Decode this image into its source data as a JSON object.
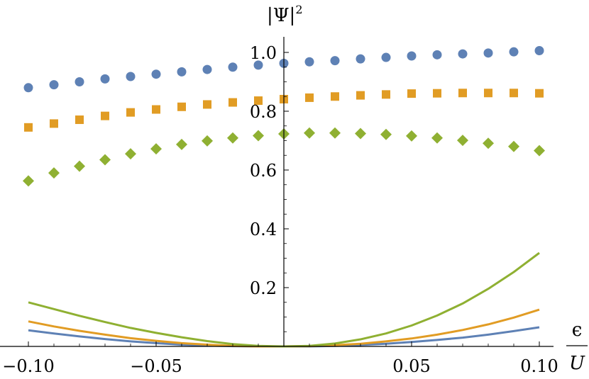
{
  "chart_data": {
    "type": "scatter",
    "xlabel_numerator": "ϵ",
    "xlabel_denominator": "U",
    "ylabel_base": "|Ψ|",
    "ylabel_exponent": "2",
    "xlim": [
      -0.1,
      0.1
    ],
    "ylim": [
      0,
      1.05
    ],
    "x_ticks": [
      {
        "value": -0.1,
        "label": "−0.10"
      },
      {
        "value": -0.05,
        "label": "−0.05"
      },
      {
        "value": 0.05,
        "label": "0.05"
      },
      {
        "value": 0.1,
        "label": "0.10"
      }
    ],
    "y_ticks": [
      {
        "value": 0.2,
        "label": "0.2"
      },
      {
        "value": 0.4,
        "label": "0.4"
      },
      {
        "value": 0.6,
        "label": "0.6"
      },
      {
        "value": 0.8,
        "label": "0.8"
      },
      {
        "value": 1.0,
        "label": "1.0"
      }
    ],
    "x": [
      -0.1,
      -0.09,
      -0.08,
      -0.07,
      -0.06,
      -0.05,
      -0.04,
      -0.03,
      -0.02,
      -0.01,
      0.0,
      0.01,
      0.02,
      0.03,
      0.04,
      0.05,
      0.06,
      0.07,
      0.08,
      0.09,
      0.1
    ],
    "point_series": [
      {
        "marker": "circle",
        "color": "#5E81B5",
        "values": [
          0.88,
          0.89,
          0.9,
          0.91,
          0.918,
          0.926,
          0.934,
          0.942,
          0.95,
          0.957,
          0.963,
          0.968,
          0.972,
          0.978,
          0.983,
          0.988,
          0.992,
          0.995,
          0.998,
          1.002,
          1.006
        ]
      },
      {
        "marker": "square",
        "color": "#E19C24",
        "values": [
          0.745,
          0.758,
          0.771,
          0.784,
          0.796,
          0.806,
          0.815,
          0.823,
          0.83,
          0.836,
          0.841,
          0.846,
          0.85,
          0.854,
          0.857,
          0.86,
          0.861,
          0.862,
          0.862,
          0.862,
          0.861
        ]
      },
      {
        "marker": "diamond",
        "color": "#8FB032",
        "values": [
          0.563,
          0.59,
          0.613,
          0.635,
          0.655,
          0.672,
          0.687,
          0.699,
          0.709,
          0.717,
          0.723,
          0.726,
          0.726,
          0.724,
          0.721,
          0.716,
          0.709,
          0.701,
          0.691,
          0.68,
          0.666
        ]
      }
    ],
    "curve_series": [
      {
        "color": "#5E81B5",
        "values": [
          0.055,
          0.044,
          0.034,
          0.025,
          0.017,
          0.011,
          0.006,
          0.003,
          0.001,
          0.0,
          0.0,
          0.0,
          0.002,
          0.005,
          0.009,
          0.015,
          0.022,
          0.03,
          0.04,
          0.052,
          0.065
        ]
      },
      {
        "color": "#E19C24",
        "values": [
          0.085,
          0.068,
          0.053,
          0.04,
          0.028,
          0.019,
          0.011,
          0.006,
          0.002,
          0.0,
          0.0,
          0.001,
          0.004,
          0.009,
          0.017,
          0.027,
          0.04,
          0.056,
          0.075,
          0.098,
          0.125
        ]
      },
      {
        "color": "#8FB032",
        "values": [
          0.15,
          0.127,
          0.104,
          0.083,
          0.063,
          0.046,
          0.031,
          0.018,
          0.008,
          0.002,
          0.0,
          0.002,
          0.01,
          0.024,
          0.044,
          0.071,
          0.105,
          0.146,
          0.196,
          0.253,
          0.318
        ]
      }
    ]
  }
}
